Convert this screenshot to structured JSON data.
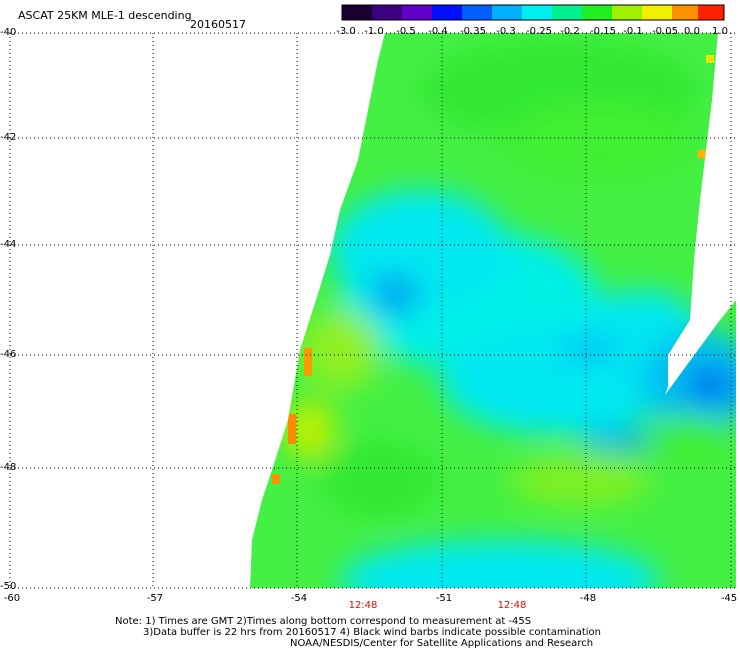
{
  "header": {
    "title": "ASCAT 25KM MLE-1 descending",
    "date": "20160517"
  },
  "colorbar": {
    "labels": [
      "-3.0",
      "-1.0",
      "-0.5",
      "-0.4",
      "-0.35",
      "-0.3",
      "-0.25",
      "-0.2",
      "-0.15",
      "-0.1",
      "-0.05",
      "0.0",
      "1.0"
    ],
    "colors": [
      "#1a0030",
      "#3a0080",
      "#6000c8",
      "#0010ff",
      "#0060ff",
      "#00b0ff",
      "#00f0f0",
      "#00f090",
      "#20f020",
      "#a0f000",
      "#f0f000",
      "#ff9000",
      "#ff2000"
    ]
  },
  "map": {
    "lat_labels": [
      "-40",
      "-42",
      "-44",
      "-46",
      "-48",
      "-50"
    ],
    "lon_labels": [
      "-60",
      "-57",
      "-54",
      "-51",
      "-48",
      "-45"
    ],
    "time_labels": [
      "12:48",
      "12:48"
    ]
  },
  "notes": {
    "line1": "Note: 1) Times are GMT 2)Times along bottom correspond to measurement at -45S",
    "line2": "3)Data buffer is 22 hrs from 20160517 4) Black wind barbs indicate possible contamination",
    "line3": "NOAA/NESDIS/Center for Satellite Applications and Research"
  }
}
